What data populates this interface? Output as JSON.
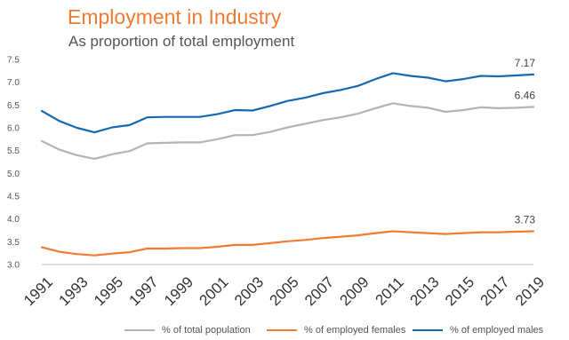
{
  "chart_data": {
    "type": "line",
    "title": "Employment in Industry",
    "subtitle": "As proportion of total employment",
    "x": [
      1991,
      1992,
      1993,
      1994,
      1995,
      1996,
      1997,
      1998,
      1999,
      2000,
      2001,
      2002,
      2003,
      2004,
      2005,
      2006,
      2007,
      2008,
      2009,
      2010,
      2011,
      2012,
      2013,
      2014,
      2015,
      2016,
      2017,
      2018,
      2019
    ],
    "x_tick_labels": [
      "1991",
      "1993",
      "1995",
      "1997",
      "1999",
      "2001",
      "2003",
      "2005",
      "2007",
      "2009",
      "2011",
      "2013",
      "2015",
      "2017",
      "2019"
    ],
    "y_tick_labels": [
      "3.0",
      "3.5",
      "4.0",
      "4.5",
      "5.0",
      "5.5",
      "6.0",
      "6.5",
      "7.0",
      "7.5"
    ],
    "ylim": [
      3.0,
      7.5
    ],
    "grid": false,
    "legend_position": "bottom",
    "series": [
      {
        "name": "% of total population",
        "color": "#b3b3b3",
        "end_label": "6.46",
        "values": [
          5.71,
          5.52,
          5.4,
          5.32,
          5.42,
          5.49,
          5.66,
          5.67,
          5.68,
          5.68,
          5.75,
          5.84,
          5.84,
          5.91,
          6.01,
          6.09,
          6.17,
          6.23,
          6.31,
          6.43,
          6.54,
          6.48,
          6.44,
          6.35,
          6.39,
          6.45,
          6.43,
          6.44,
          6.46
        ]
      },
      {
        "name": "% of employed females",
        "color": "#f07b33",
        "end_label": "3.73",
        "values": [
          3.38,
          3.28,
          3.23,
          3.2,
          3.24,
          3.27,
          3.35,
          3.35,
          3.36,
          3.36,
          3.39,
          3.43,
          3.43,
          3.47,
          3.51,
          3.54,
          3.58,
          3.61,
          3.64,
          3.69,
          3.73,
          3.71,
          3.69,
          3.67,
          3.69,
          3.71,
          3.71,
          3.72,
          3.73
        ]
      },
      {
        "name": "% of employed males",
        "color": "#1469b0",
        "end_label": "7.17",
        "values": [
          6.37,
          6.15,
          6.0,
          5.9,
          6.01,
          6.06,
          6.23,
          6.24,
          6.24,
          6.24,
          6.3,
          6.39,
          6.38,
          6.48,
          6.59,
          6.66,
          6.76,
          6.83,
          6.92,
          7.07,
          7.2,
          7.14,
          7.1,
          7.02,
          7.07,
          7.14,
          7.13,
          7.15,
          7.17
        ]
      }
    ]
  }
}
